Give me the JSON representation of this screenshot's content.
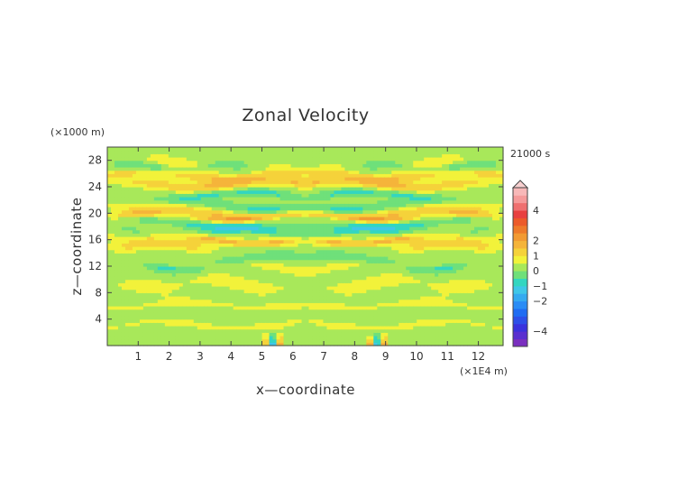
{
  "chart_data": {
    "type": "heatmap",
    "title": "Zonal Velocity",
    "xlabel": "x—coordinate",
    "ylabel": "z—coordinate",
    "x_unit": "(×1E4 m)",
    "y_unit": "(×1000 m)",
    "time_label": "21000 s",
    "xlim": [
      0,
      12.8
    ],
    "ylim": [
      0,
      30
    ],
    "x_ticks": [
      "1",
      "2",
      "3",
      "4",
      "5",
      "6",
      "7",
      "8",
      "9",
      "10",
      "11",
      "12"
    ],
    "y_ticks": [
      "4",
      "8",
      "12",
      "16",
      "20",
      "24",
      "28"
    ],
    "colorbar": {
      "levels": [
        -5,
        -4.5,
        -4,
        -3.5,
        -3,
        -2.5,
        -2,
        -1.5,
        -1,
        -0.5,
        0,
        0.5,
        1,
        1.5,
        2,
        2.5,
        3,
        3.5,
        4,
        4.5,
        5,
        5.5
      ],
      "colors": [
        "#7a2fbf",
        "#5a2fcf",
        "#3a32dd",
        "#2d4fe8",
        "#1f6cf2",
        "#2a8cf5",
        "#35aaf0",
        "#3fc7e8",
        "#33d6c0",
        "#6fe07a",
        "#a8e85a",
        "#f2f23a",
        "#f5d23a",
        "#f5b43a",
        "#f29a32",
        "#ee7a2a",
        "#ec5a2a",
        "#e84040",
        "#ef7070",
        "#f59a9a",
        "#f8b8b8"
      ],
      "tick_labels": [
        "4",
        "2",
        "1",
        "0",
        "−1",
        "−2",
        "−4"
      ],
      "tick_values": [
        4,
        2,
        1,
        0,
        -1,
        -2,
        -4
      ]
    },
    "field": {
      "description": "zonal velocity u(x,z) in m/s, mirrored about x = 6.4",
      "background": 0.25,
      "bands": [
        {
          "x0": 0.3,
          "x1": 6.3,
          "z": 25.8,
          "u": 0.9
        },
        {
          "x0": 1.5,
          "x1": 6.3,
          "z": 24.5,
          "u": 1.3
        },
        {
          "x0": 2.5,
          "x1": 5.5,
          "z": 22.8,
          "u": -0.9
        },
        {
          "x0": 0.3,
          "x1": 3.0,
          "z": 21.2,
          "u": 0.4
        },
        {
          "x0": 3.0,
          "x1": 6.2,
          "z": 21.0,
          "u": -0.8
        },
        {
          "x0": 0.5,
          "x1": 3.5,
          "z": 20.0,
          "u": 1.2
        },
        {
          "x0": 3.5,
          "x1": 6.0,
          "z": 19.5,
          "u": 1.5
        },
        {
          "x0": 1.0,
          "x1": 3.2,
          "z": 18.8,
          "u": -0.8
        },
        {
          "x0": 2.5,
          "x1": 5.0,
          "z": 17.5,
          "u": -1.1
        },
        {
          "x0": 5.0,
          "x1": 6.3,
          "z": 17.3,
          "u": -0.6
        },
        {
          "x0": 0.8,
          "x1": 3.0,
          "z": 16.8,
          "u": 0.6
        },
        {
          "x0": 3.0,
          "x1": 5.5,
          "z": 16.0,
          "u": 1.4
        },
        {
          "x0": 1.0,
          "x1": 2.5,
          "z": 15.0,
          "u": 1.1
        },
        {
          "x0": 4.2,
          "x1": 6.0,
          "z": 13.2,
          "u": -0.7
        },
        {
          "x0": 2.0,
          "x1": 2.6,
          "z": 12.0,
          "u": -0.8
        },
        {
          "x0": 4.5,
          "x1": 6.0,
          "z": 11.8,
          "u": 0.4
        },
        {
          "x0": 0.3,
          "x1": 6.3,
          "z": 9.3,
          "u": 0.5
        },
        {
          "x0": 0.3,
          "x1": 6.3,
          "z": 6.2,
          "u": 0.45
        },
        {
          "x0": 0.3,
          "x1": 6.3,
          "z": 3.2,
          "u": 0.4
        },
        {
          "x0": 1.0,
          "x1": 3.0,
          "z": 27.5,
          "u": 0.4
        },
        {
          "x0": 0.8,
          "x1": 1.4,
          "z": 27.0,
          "u": -0.7
        },
        {
          "x0": 3.0,
          "x1": 3.8,
          "z": 27.0,
          "u": -0.6
        }
      ],
      "mountain": {
        "x": 5.3,
        "zmax": 2.2
      }
    }
  }
}
